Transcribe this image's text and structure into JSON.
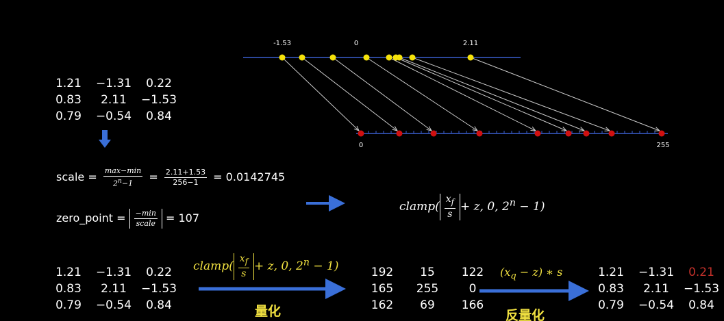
{
  "number_line": {
    "top_labels": [
      "-1.53",
      "0",
      "2.11"
    ],
    "bottom_labels": [
      "0",
      "255"
    ]
  },
  "input_matrix": [
    [
      "1.21",
      "−1.31",
      "0.22"
    ],
    [
      "0.83",
      "2.11",
      "−1.53"
    ],
    [
      "0.79",
      "−0.54",
      "0.84"
    ]
  ],
  "scale": {
    "label": "scale",
    "equals": "=",
    "numerator": "max−min",
    "denominator_base": "2",
    "denominator_exp": "n",
    "denominator_tail": "−1",
    "numerator2": "2.11+1.53",
    "denominator2": "256−1",
    "result": "0.0142745"
  },
  "zero_point": {
    "label": "zero_point",
    "equals": "=",
    "numerator": "−min",
    "denominator": "scale",
    "result": "107"
  },
  "clamp_formula": {
    "name": "clamp(",
    "var": "x",
    "sub": "f",
    "denominator": "s",
    "rest": "+ z, 0, 2",
    "exp": "n",
    "tail": " − 1)"
  },
  "bottom": {
    "input_matrix": [
      [
        "1.21",
        "−1.31",
        "0.22"
      ],
      [
        "0.83",
        "2.11",
        "−1.53"
      ],
      [
        "0.79",
        "−0.54",
        "0.84"
      ]
    ],
    "quantize_label": "量化",
    "quantized_matrix": [
      [
        "192",
        "15",
        "122"
      ],
      [
        "165",
        "255",
        "0"
      ],
      [
        "162",
        "69",
        "166"
      ]
    ],
    "dequant_formula": {
      "open": "(x",
      "sub": "q",
      "tail": " − z) ∗ s"
    },
    "dequantize_label": "反量化",
    "dequantized_matrix": [
      [
        "1.21",
        "−1.31",
        "0.21"
      ],
      [
        "0.83",
        "2.11",
        "−1.53"
      ],
      [
        "0.79",
        "−0.54",
        "0.84"
      ]
    ]
  }
}
